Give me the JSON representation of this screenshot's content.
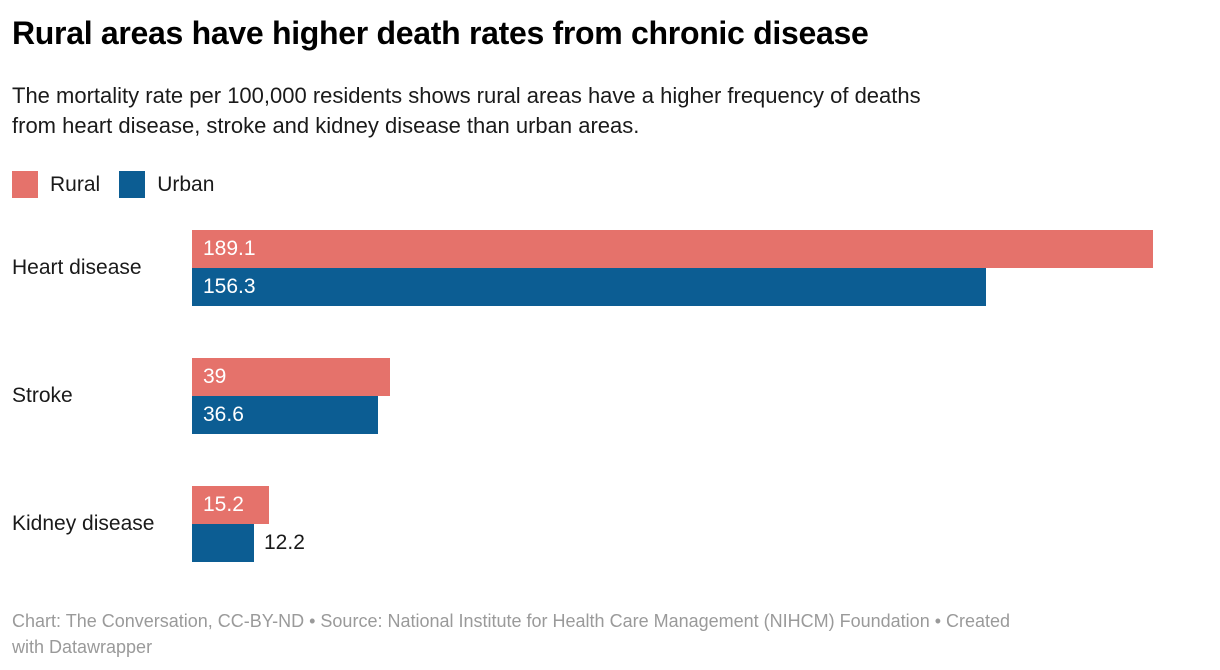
{
  "header": {
    "title": "Rural areas have higher death rates from chronic disease",
    "subtitle": "The mortality rate per 100,000 residents shows rural areas have a higher frequency of deaths from heart disease, stroke and kidney disease than urban areas."
  },
  "chart_data": {
    "type": "bar",
    "orientation": "horizontal",
    "title": "Rural areas have higher death rates from chronic disease",
    "categories": [
      "Heart disease",
      "Stroke",
      "Kidney disease"
    ],
    "series": [
      {
        "name": "Rural",
        "color": "#e5726b",
        "values": [
          189.1,
          39,
          15.2
        ]
      },
      {
        "name": "Urban",
        "color": "#0c5d93",
        "values": [
          156.3,
          36.6,
          12.2
        ]
      }
    ],
    "value_labels": [
      [
        "189.1",
        "156.3"
      ],
      [
        "39",
        "36.6"
      ],
      [
        "15.2",
        "12.2"
      ]
    ],
    "xlim": [
      0,
      200
    ],
    "grid": false,
    "legend_position": "top",
    "value_label_inside_color": "#ffffff",
    "value_label_outside_color": "#1a1a1a"
  },
  "footer": {
    "text": "Chart: The Conversation, CC-BY-ND • Source: National Institute for Health Care Management (NIHCM) Foundation • Created with Datawrapper"
  }
}
